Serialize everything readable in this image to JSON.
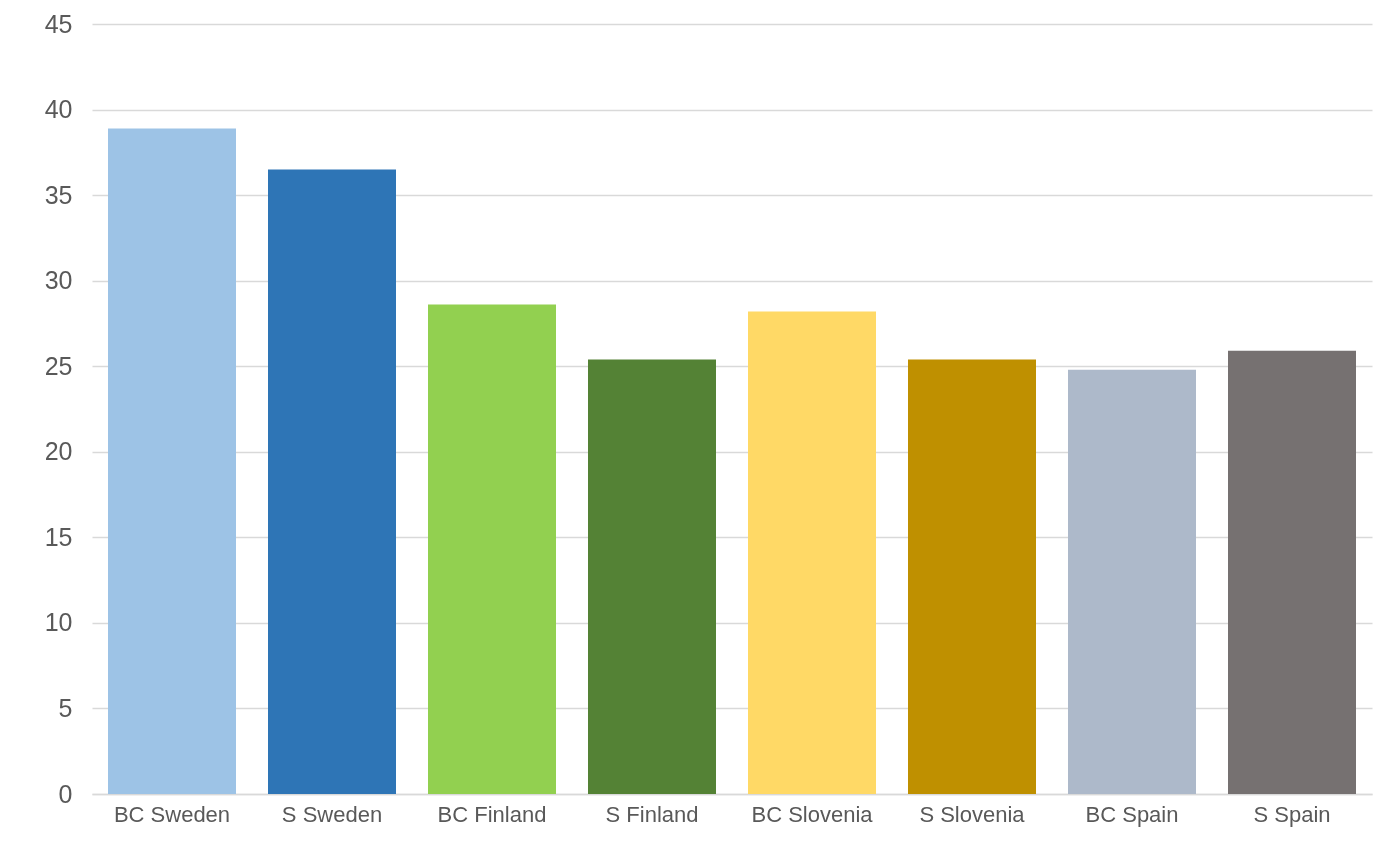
{
  "chart_data": {
    "type": "bar",
    "categories": [
      "BC Sweden",
      "S Sweden",
      "BC Finland",
      "S Finland",
      "BC Slovenia",
      "S Slovenia",
      "BC Spain",
      "S Spain"
    ],
    "values": [
      38.9,
      36.5,
      28.6,
      25.4,
      28.2,
      25.4,
      24.8,
      25.9
    ],
    "colors": [
      "#9dc3e6",
      "#2e75b6",
      "#92d050",
      "#548235",
      "#ffd966",
      "#bf9000",
      "#adb9ca",
      "#767171"
    ],
    "ylim": [
      0,
      45
    ],
    "yticks": [
      0,
      5,
      10,
      15,
      20,
      25,
      30,
      35,
      40,
      45
    ],
    "grid": "y"
  }
}
